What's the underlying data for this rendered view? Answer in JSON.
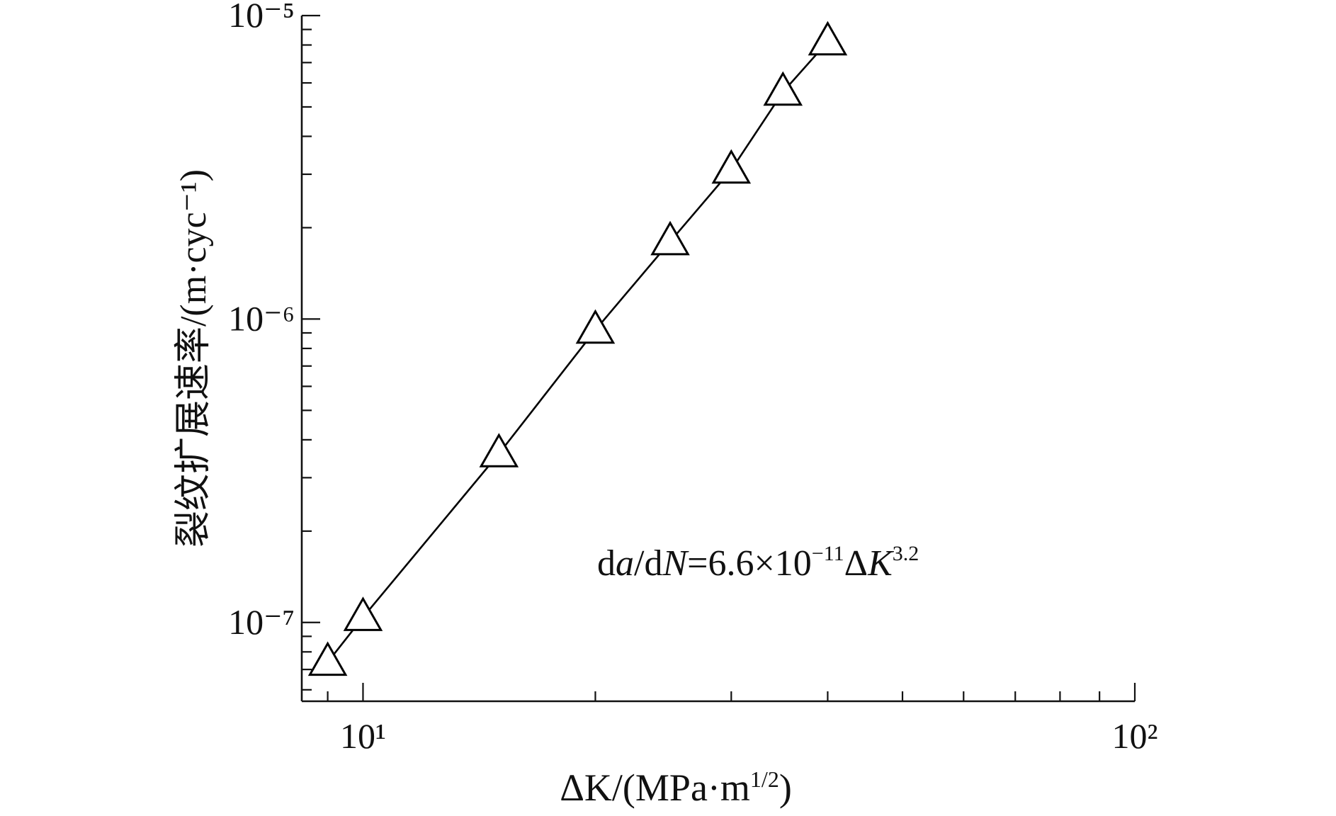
{
  "chart_data": {
    "type": "line",
    "xlabel": [
      "ΔK/(MPa·m",
      "1/2",
      ")"
    ],
    "ylabel": "裂纹扩展速率/(m·cyc⁻¹)",
    "annotation": [
      "d",
      "a",
      "/d",
      "N",
      "=6.6×10",
      "−11",
      "Δ",
      "K",
      "3.2"
    ],
    "x": [
      9,
      10,
      15,
      20,
      25,
      30,
      35,
      40
    ],
    "series": [
      {
        "color": "#000000",
        "values": [
          7.4e-08,
          1.04e-07,
          3.6e-07,
          9.2e-07,
          1.8e-06,
          3.1e-06,
          5.6e-06,
          8.2e-06
        ]
      }
    ],
    "xlim": [
      8.33,
      100
    ],
    "ylim": [
      5.5e-08,
      1e-05
    ],
    "xticks": [
      {
        "value": 10,
        "label": "10¹"
      },
      {
        "value": 100,
        "label": "10²"
      }
    ],
    "yticks": [
      {
        "value": 1e-07,
        "label": "10⁻⁷"
      },
      {
        "value": 1e-06,
        "label": "10⁻⁶"
      },
      {
        "value": 1e-05,
        "label": "10⁻⁵"
      }
    ],
    "log_x": true,
    "log_y": true,
    "marker": "triangle"
  }
}
